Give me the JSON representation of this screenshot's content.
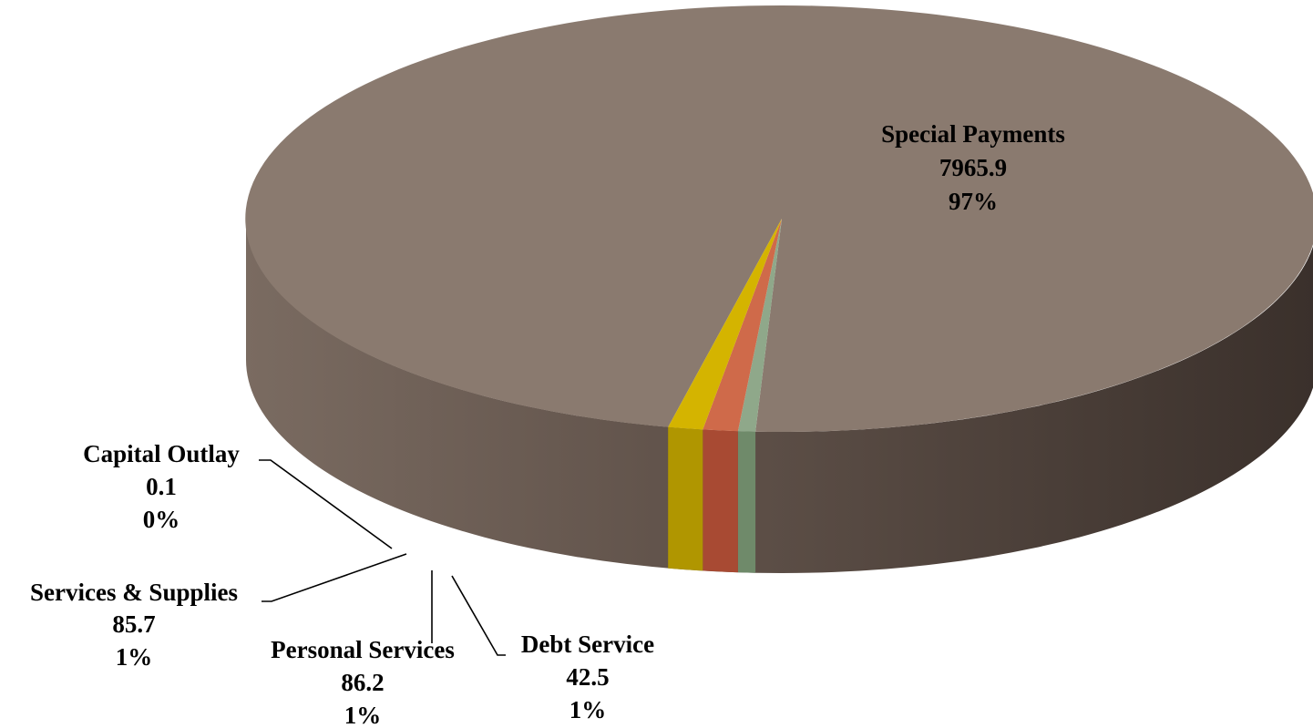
{
  "chart_data": {
    "type": "pie",
    "style": "3d",
    "slices": [
      {
        "label": "Special Payments",
        "value": 7965.9,
        "percent": "97%",
        "color": "#8a7a6f"
      },
      {
        "label": "Capital Outlay",
        "value": 0.1,
        "percent": "0%",
        "color": "#c9a400"
      },
      {
        "label": "Services & Supplies",
        "value": 85.7,
        "percent": "1%",
        "color": "#d4b400"
      },
      {
        "label": "Personal Services",
        "value": 86.2,
        "percent": "1%",
        "color": "#cf6a4a"
      },
      {
        "label": "Debt Service",
        "value": 42.5,
        "percent": "1%",
        "color": "#8fa88a"
      }
    ],
    "value_strings": [
      "7965.9",
      "0.1",
      "85.7",
      "86.2",
      "42.5"
    ]
  }
}
